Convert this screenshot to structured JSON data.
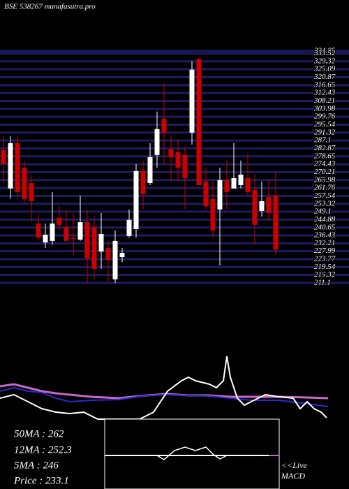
{
  "chart_data": {
    "type": "candlestick",
    "title": "BSE 538267 munafasutra.pro",
    "ylim": [
      211.1,
      334.85
    ],
    "yticks": [
      334.85,
      333.52,
      329.32,
      325.09,
      320.87,
      316.65,
      312.43,
      308.21,
      303.98,
      299.76,
      295.54,
      291.32,
      287.1,
      282.87,
      278.65,
      274.43,
      270.21,
      265.98,
      261.76,
      257.54,
      253.32,
      249.1,
      244.88,
      240.65,
      236.43,
      232.21,
      227.99,
      223.77,
      219.54,
      215.32,
      211.1
    ],
    "grid": true,
    "grid_color": "#1c1c66",
    "up_color": "#ffffff",
    "down_color": "#cc0000",
    "open": [
      282.0,
      261.5,
      285.7,
      272.6,
      264.4,
      242.8,
      232.7,
      233.5,
      245.8,
      240.9,
      235.3,
      234.2,
      243.5,
      240.9,
      227.9,
      229.7,
      213.0,
      224.9,
      236.1,
      239.8,
      270.8,
      264.4,
      279.4,
      298.7,
      282.7,
      280.9,
      279.4,
      291.3,
      330.5,
      265.2,
      255.9,
      250.3,
      265.9,
      261.5,
      263.3,
      267.0,
      260.7,
      249.5,
      257.0,
      257.7
    ],
    "high": [
      289.4,
      289.4,
      289.4,
      276.4,
      268.9,
      248.4,
      242.8,
      259.6,
      252.1,
      250.3,
      248.4,
      257.7,
      250.3,
      246.5,
      248.4,
      233.5,
      239.1,
      229.7,
      250.3,
      274.5,
      276.4,
      285.7,
      302.5,
      317.4,
      289.4,
      287.6,
      283.8,
      329.3,
      331.2,
      272.6,
      265.2,
      272.6,
      276.4,
      285.7,
      276.4,
      280.1,
      268.9,
      265.2,
      266.3,
      270.1
    ],
    "low": [
      265.2,
      255.9,
      255.9,
      254.0,
      243.5,
      233.5,
      229.7,
      231.6,
      239.1,
      233.5,
      226.0,
      233.5,
      211.3,
      213.0,
      218.6,
      212.0,
      211.1,
      222.1,
      235.3,
      235.3,
      250.3,
      263.3,
      272.6,
      274.5,
      265.2,
      265.2,
      250.3,
      284.9,
      263.3,
      250.3,
      235.3,
      220.4,
      250.3,
      261.5,
      261.5,
      257.8,
      231.6,
      246.5,
      244.7,
      226.0
    ],
    "close": [
      274.5,
      285.7,
      259.6,
      255.9,
      254.7,
      235.3,
      236.8,
      242.8,
      242.1,
      233.5,
      234.6,
      243.5,
      224.1,
      218.6,
      237.2,
      223.4,
      233.5,
      227.1,
      244.7,
      270.8,
      258.5,
      278.2,
      293.2,
      291.3,
      278.2,
      272.6,
      267.0,
      324.9,
      263.3,
      252.1,
      239.1,
      265.9,
      259.6,
      267.0,
      268.9,
      259.6,
      242.1,
      254.7,
      248.4,
      228.9
    ],
    "info": [
      "50MA : 262",
      "12MA : 252.3",
      "5MA : 246",
      "Price   : 233.1"
    ],
    "live_label": "<<Live",
    "indicator_label": "MACD"
  }
}
